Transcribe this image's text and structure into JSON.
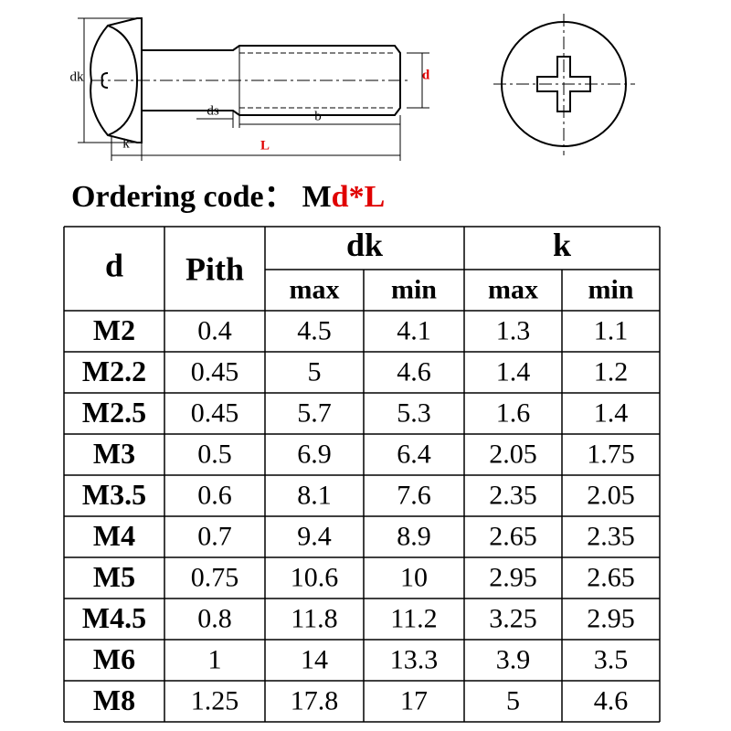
{
  "drawing": {
    "labels": {
      "dk": "dk",
      "d": "d",
      "ds": "ds",
      "b": "b",
      "k": "k",
      "L": "L"
    }
  },
  "ordering": {
    "label": "Ordering code：",
    "prefix": "M",
    "suffix": "d*L"
  },
  "table": {
    "header": {
      "d": "d",
      "pitch": "Pith",
      "dk": "dk",
      "k": "k",
      "dk_max": "max",
      "dk_min": "min",
      "k_max": "max",
      "k_min": "min"
    },
    "rows": [
      [
        "M2",
        "0.4",
        "4.5",
        "4.1",
        "1.3",
        "1.1"
      ],
      [
        "M2.2",
        "0.45",
        "5",
        "4.6",
        "1.4",
        "1.2"
      ],
      [
        "M2.5",
        "0.45",
        "5.7",
        "5.3",
        "1.6",
        "1.4"
      ],
      [
        "M3",
        "0.5",
        "6.9",
        "6.4",
        "2.05",
        "1.75"
      ],
      [
        "M3.5",
        "0.6",
        "8.1",
        "7.6",
        "2.35",
        "2.05"
      ],
      [
        "M4",
        "0.7",
        "9.4",
        "8.9",
        "2.65",
        "2.35"
      ],
      [
        "M5",
        "0.75",
        "10.6",
        "10",
        "2.95",
        "2.65"
      ],
      [
        "M4.5",
        "0.8",
        "11.8",
        "11.2",
        "3.25",
        "2.95"
      ],
      [
        "M6",
        "1",
        "14",
        "13.3",
        "3.9",
        "3.5"
      ],
      [
        "M8",
        "1.25",
        "17.8",
        "17",
        "5",
        "4.6"
      ]
    ]
  }
}
